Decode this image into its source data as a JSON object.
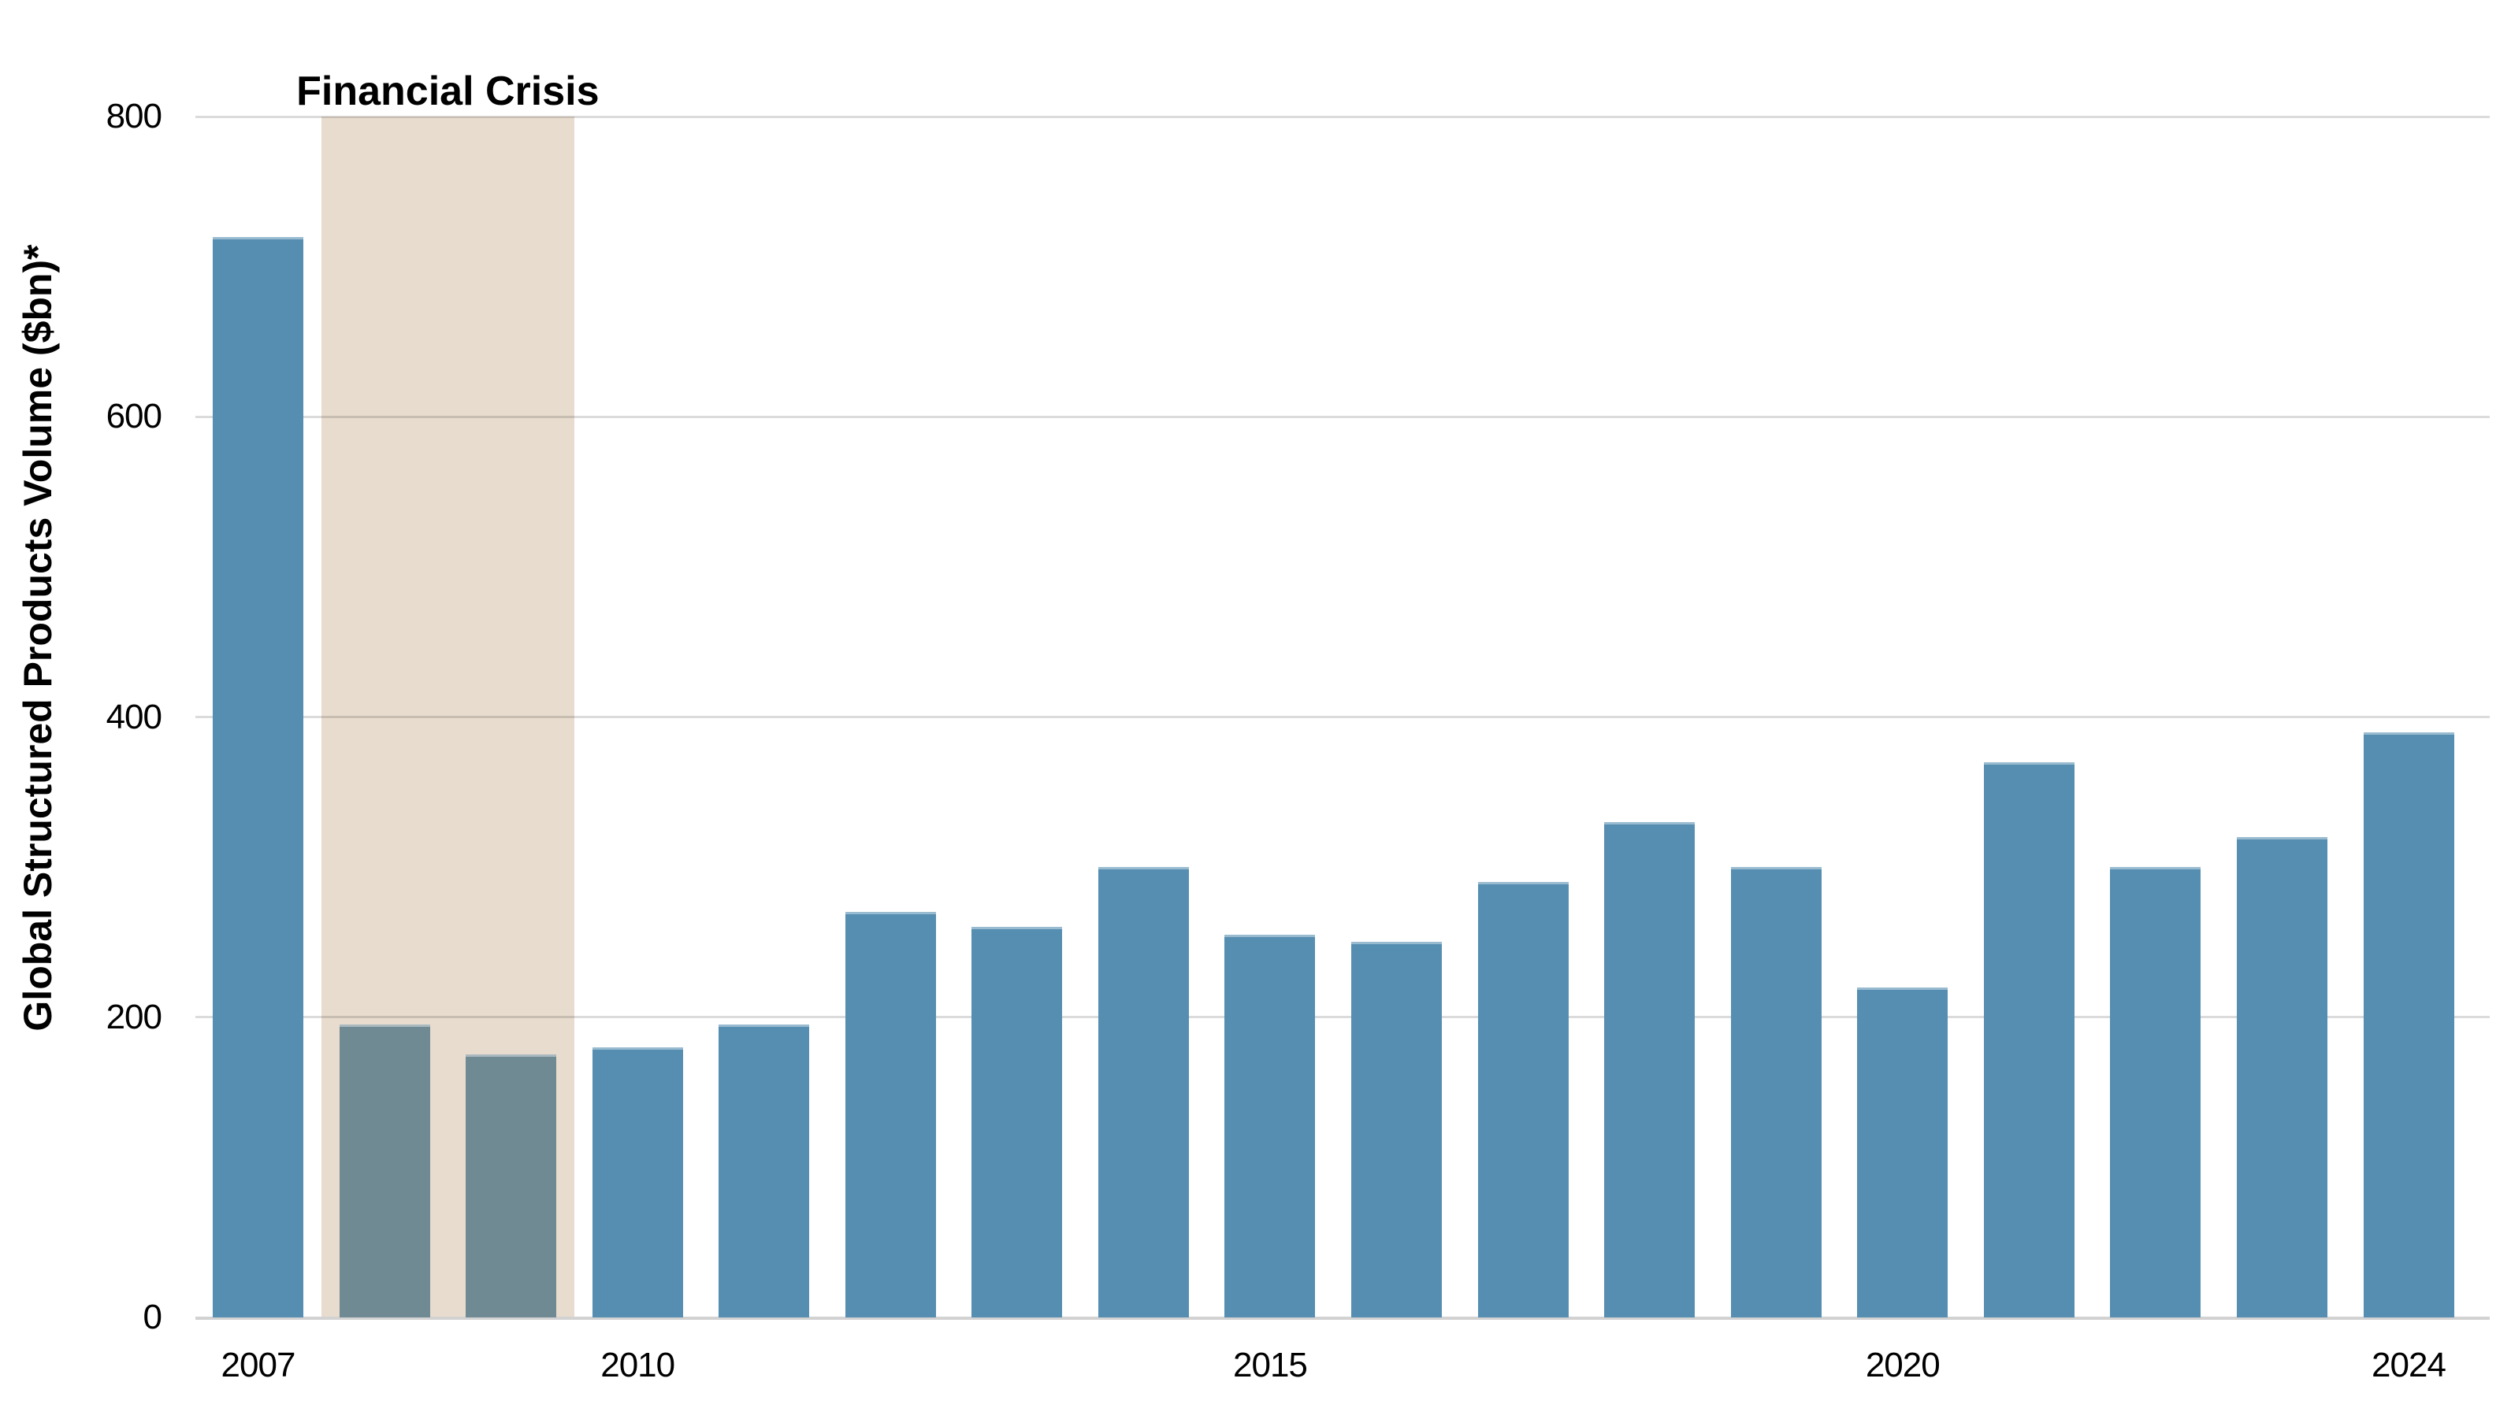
{
  "chart_data": {
    "type": "bar",
    "title": "",
    "xlabel": "",
    "ylabel": "Global Structured Products Volume ($bn)*",
    "categories": [
      "2007",
      "2008",
      "2009",
      "2010",
      "2011",
      "2012",
      "2013",
      "2014",
      "2015",
      "2016",
      "2017",
      "2018",
      "2019",
      "2020",
      "2021",
      "2022",
      "2023",
      "2024"
    ],
    "values": [
      720,
      195,
      175,
      180,
      195,
      270,
      260,
      300,
      255,
      250,
      290,
      330,
      300,
      220,
      370,
      300,
      320,
      390
    ],
    "ylim": [
      0,
      800
    ],
    "yticks": [
      0,
      200,
      400,
      600,
      800
    ],
    "xticks_shown": [
      "2007",
      "2010",
      "2015",
      "2020",
      "2024"
    ],
    "grid": "horizontal",
    "legend": "none",
    "annotation": {
      "label": "Financial Crisis",
      "start_year": "2008",
      "end_year": "2009"
    },
    "highlight_years": [
      "2008",
      "2009"
    ],
    "colors": {
      "bar": "#568EB1",
      "crisis_bar": "#708A94",
      "crisis_band": "#E8DCCE",
      "gridline": "#DBDBDB",
      "axis_line": "#D2D2D2",
      "text": "#000000"
    }
  }
}
